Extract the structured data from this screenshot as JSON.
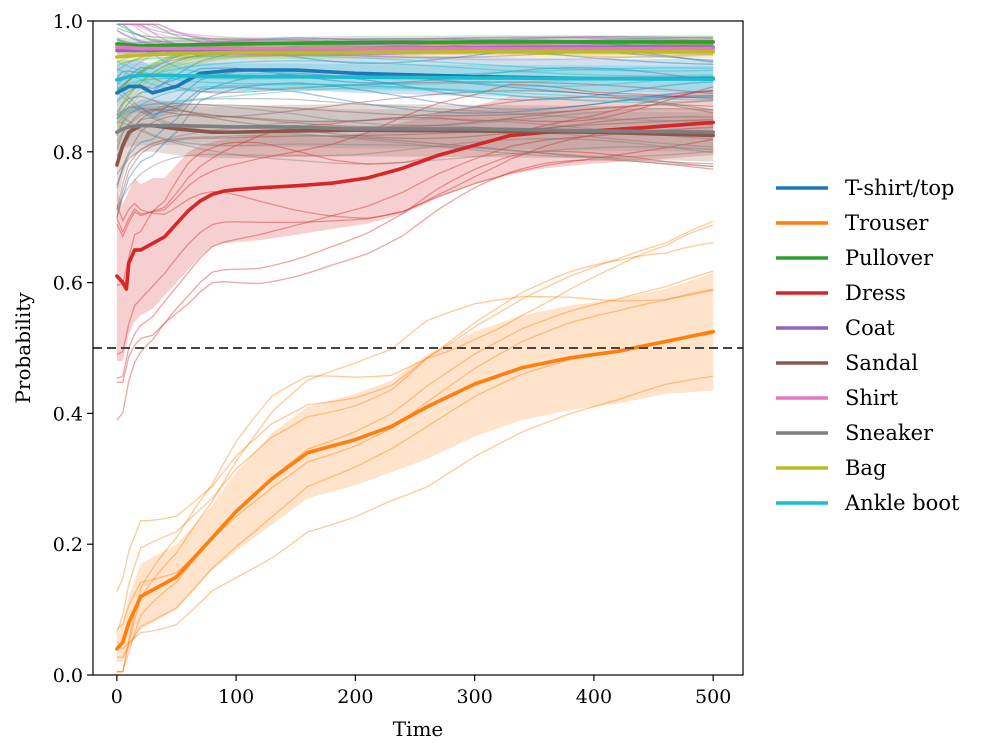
{
  "chart_data": {
    "type": "line",
    "title": "",
    "xlabel": "Time",
    "ylabel": "Probability",
    "xlim": [
      -20,
      525
    ],
    "ylim": [
      0.0,
      1.0
    ],
    "xticks": [
      0,
      100,
      200,
      300,
      400,
      500
    ],
    "yticks": [
      0.0,
      0.2,
      0.4,
      0.6,
      0.8,
      1.0
    ],
    "xtick_labels": [
      "0",
      "100",
      "200",
      "300",
      "400",
      "500"
    ],
    "ytick_labels": [
      "0.0",
      "0.2",
      "0.4",
      "0.6",
      "0.8",
      "1.0"
    ],
    "threshold": 0.5,
    "legend_position": "right",
    "series": [
      {
        "name": "T-shirt/top",
        "color": "#1f77b4",
        "x": [
          0,
          10,
          20,
          30,
          50,
          70,
          100,
          150,
          200,
          300,
          400,
          500
        ],
        "values": [
          0.89,
          0.9,
          0.9,
          0.89,
          0.9,
          0.92,
          0.925,
          0.925,
          0.92,
          0.915,
          0.912,
          0.912
        ],
        "band": [
          0.05,
          0.04,
          0.04,
          0.04,
          0.04,
          0.03,
          0.03,
          0.03,
          0.03,
          0.03,
          0.03,
          0.03
        ]
      },
      {
        "name": "Trouser",
        "color": "#ff7f0e",
        "x": [
          0,
          5,
          10,
          20,
          30,
          50,
          80,
          100,
          130,
          160,
          200,
          230,
          260,
          300,
          340,
          380,
          420,
          460,
          500
        ],
        "values": [
          0.04,
          0.05,
          0.08,
          0.12,
          0.13,
          0.15,
          0.21,
          0.25,
          0.3,
          0.34,
          0.36,
          0.38,
          0.41,
          0.445,
          0.47,
          0.485,
          0.495,
          0.51,
          0.525
        ],
        "band": [
          0.02,
          0.03,
          0.04,
          0.05,
          0.05,
          0.05,
          0.05,
          0.06,
          0.07,
          0.07,
          0.07,
          0.07,
          0.08,
          0.08,
          0.08,
          0.08,
          0.08,
          0.08,
          0.09
        ]
      },
      {
        "name": "Pullover",
        "color": "#2ca02c",
        "x": [
          0,
          20,
          50,
          100,
          200,
          300,
          400,
          500
        ],
        "values": [
          0.965,
          0.962,
          0.963,
          0.965,
          0.967,
          0.968,
          0.968,
          0.968
        ],
        "band": [
          0.01,
          0.01,
          0.01,
          0.01,
          0.01,
          0.01,
          0.01,
          0.01
        ]
      },
      {
        "name": "Dress",
        "color": "#d62728",
        "x": [
          0,
          5,
          8,
          10,
          15,
          20,
          30,
          40,
          50,
          60,
          70,
          80,
          90,
          100,
          120,
          150,
          180,
          210,
          240,
          270,
          300,
          330,
          360,
          400,
          450,
          500
        ],
        "values": [
          0.61,
          0.6,
          0.59,
          0.63,
          0.65,
          0.65,
          0.66,
          0.67,
          0.69,
          0.71,
          0.725,
          0.735,
          0.74,
          0.742,
          0.745,
          0.748,
          0.752,
          0.76,
          0.775,
          0.795,
          0.81,
          0.825,
          0.83,
          0.832,
          0.838,
          0.845
        ],
        "band": [
          0.13,
          0.12,
          0.11,
          0.11,
          0.11,
          0.1,
          0.1,
          0.09,
          0.09,
          0.09,
          0.085,
          0.08,
          0.08,
          0.08,
          0.08,
          0.075,
          0.07,
          0.07,
          0.07,
          0.065,
          0.06,
          0.06,
          0.055,
          0.05,
          0.05,
          0.05
        ]
      },
      {
        "name": "Coat",
        "color": "#9467bd",
        "x": [
          0,
          20,
          50,
          100,
          200,
          300,
          400,
          500
        ],
        "values": [
          0.955,
          0.955,
          0.956,
          0.957,
          0.958,
          0.959,
          0.96,
          0.96
        ],
        "band": [
          0.01,
          0.01,
          0.01,
          0.01,
          0.01,
          0.01,
          0.01,
          0.01
        ]
      },
      {
        "name": "Sandal",
        "color": "#8c564b",
        "x": [
          0,
          5,
          10,
          20,
          30,
          50,
          80,
          100,
          150,
          200,
          300,
          400,
          500
        ],
        "values": [
          0.78,
          0.81,
          0.83,
          0.84,
          0.84,
          0.835,
          0.83,
          0.83,
          0.832,
          0.833,
          0.832,
          0.83,
          0.825
        ],
        "band": [
          0.06,
          0.05,
          0.04,
          0.04,
          0.04,
          0.04,
          0.04,
          0.04,
          0.04,
          0.04,
          0.04,
          0.04,
          0.04
        ]
      },
      {
        "name": "Shirt",
        "color": "#e377c2",
        "x": [
          0,
          20,
          50,
          100,
          200,
          300,
          400,
          500
        ],
        "values": [
          0.96,
          0.958,
          0.958,
          0.958,
          0.958,
          0.958,
          0.958,
          0.958
        ],
        "band": [
          0.01,
          0.01,
          0.01,
          0.01,
          0.01,
          0.01,
          0.01,
          0.01
        ]
      },
      {
        "name": "Sneaker",
        "color": "#7f7f7f",
        "x": [
          0,
          5,
          10,
          20,
          30,
          50,
          100,
          150,
          200,
          300,
          400,
          500
        ],
        "values": [
          0.83,
          0.835,
          0.838,
          0.84,
          0.84,
          0.84,
          0.838,
          0.838,
          0.835,
          0.835,
          0.832,
          0.83
        ],
        "band": [
          0.03,
          0.03,
          0.03,
          0.03,
          0.03,
          0.03,
          0.03,
          0.03,
          0.03,
          0.03,
          0.03,
          0.03
        ]
      },
      {
        "name": "Bag",
        "color": "#bcbd22",
        "x": [
          0,
          20,
          50,
          100,
          200,
          300,
          400,
          500
        ],
        "values": [
          0.945,
          0.948,
          0.95,
          0.952,
          0.952,
          0.953,
          0.953,
          0.953
        ],
        "band": [
          0.01,
          0.01,
          0.01,
          0.01,
          0.01,
          0.01,
          0.01,
          0.01
        ]
      },
      {
        "name": "Ankle boot",
        "color": "#17becf",
        "x": [
          0,
          10,
          20,
          40,
          60,
          100,
          150,
          200,
          300,
          400,
          500
        ],
        "values": [
          0.91,
          0.915,
          0.917,
          0.917,
          0.916,
          0.915,
          0.915,
          0.914,
          0.913,
          0.912,
          0.911
        ],
        "band": [
          0.02,
          0.02,
          0.02,
          0.02,
          0.02,
          0.02,
          0.02,
          0.02,
          0.02,
          0.02,
          0.02
        ]
      }
    ]
  }
}
